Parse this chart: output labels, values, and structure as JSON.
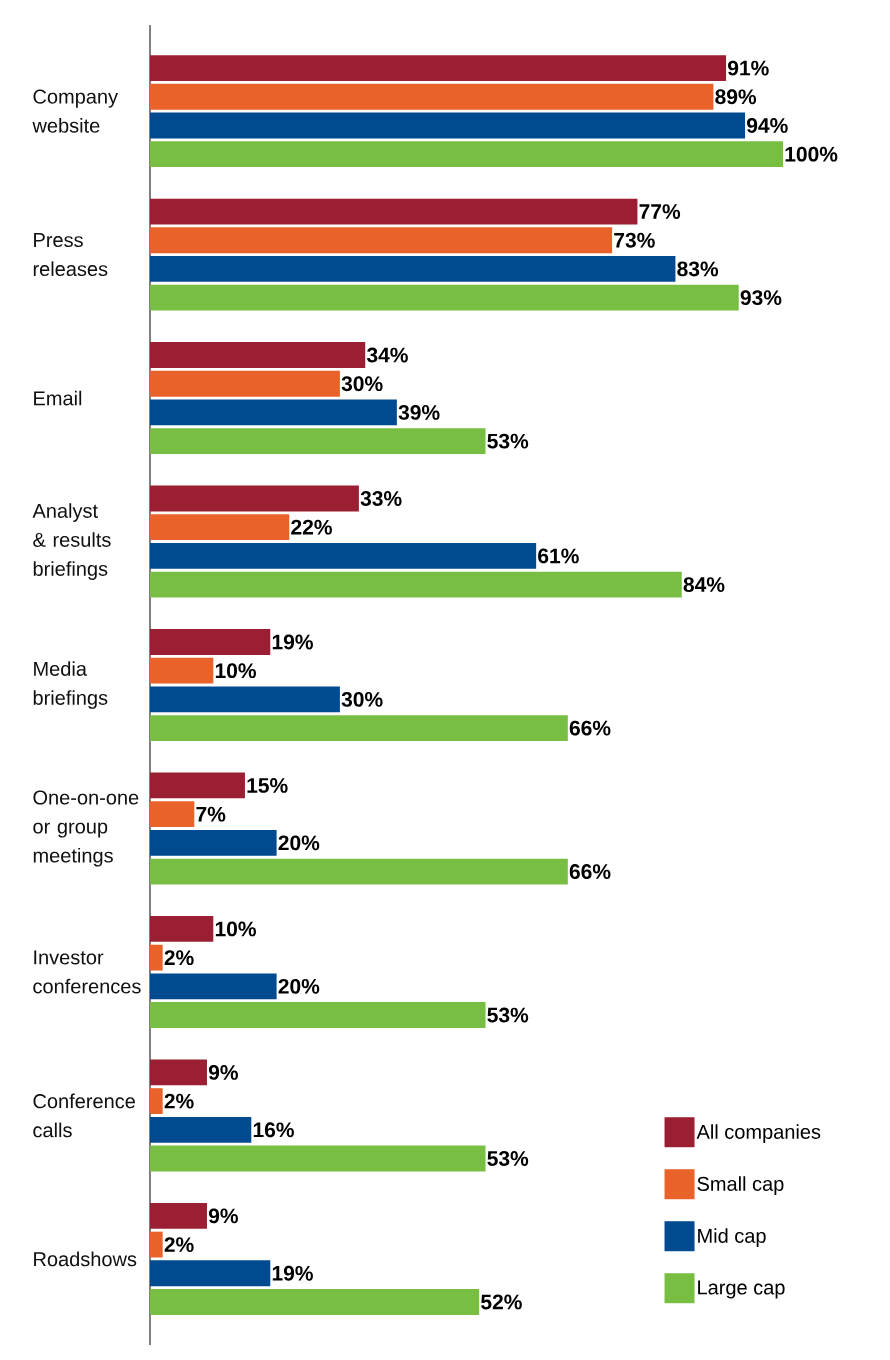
{
  "chart_data": {
    "type": "bar",
    "orientation": "horizontal",
    "legend": "bottom right",
    "categories": [
      "Company website",
      "Press releases",
      "Email",
      "Analyst & results briefings",
      "Media briefings",
      "One-on-one or group meetings",
      "Investor conferences",
      "Conference calls",
      "Roadshows"
    ],
    "series": [
      {
        "name": "All companies",
        "color": "#9b1f32",
        "values": [
          91,
          77,
          34,
          33,
          19,
          15,
          10,
          9,
          9
        ],
        "value_labels": [
          "91%",
          "77%",
          "34%",
          "33%",
          "19%",
          "15%",
          "10%",
          "9%",
          "9%"
        ]
      },
      {
        "name": "Small cap",
        "color": "#e8622a",
        "values": [
          89,
          73,
          30,
          22,
          10,
          7,
          2,
          2,
          2
        ],
        "value_labels": [
          "89%",
          "73%",
          "30%",
          "22%",
          "10%",
          "7%",
          "2%",
          "2%",
          "2%"
        ]
      },
      {
        "name": "Mid cap",
        "color": "#004a8f",
        "values": [
          94,
          83,
          39,
          61,
          30,
          20,
          20,
          16,
          19
        ],
        "value_labels": [
          "94%",
          "83%",
          "39%",
          "61%",
          "30%",
          "20%",
          "20%",
          "16%",
          "19%"
        ]
      },
      {
        "name": "Large cap",
        "color": "#78be43",
        "values": [
          100,
          93,
          53,
          84,
          66,
          66,
          53,
          53,
          52
        ],
        "value_labels": [
          "100%",
          "93%",
          "53%",
          "84%",
          "66%",
          "66%",
          "53%",
          "53%",
          "52%"
        ]
      }
    ]
  }
}
